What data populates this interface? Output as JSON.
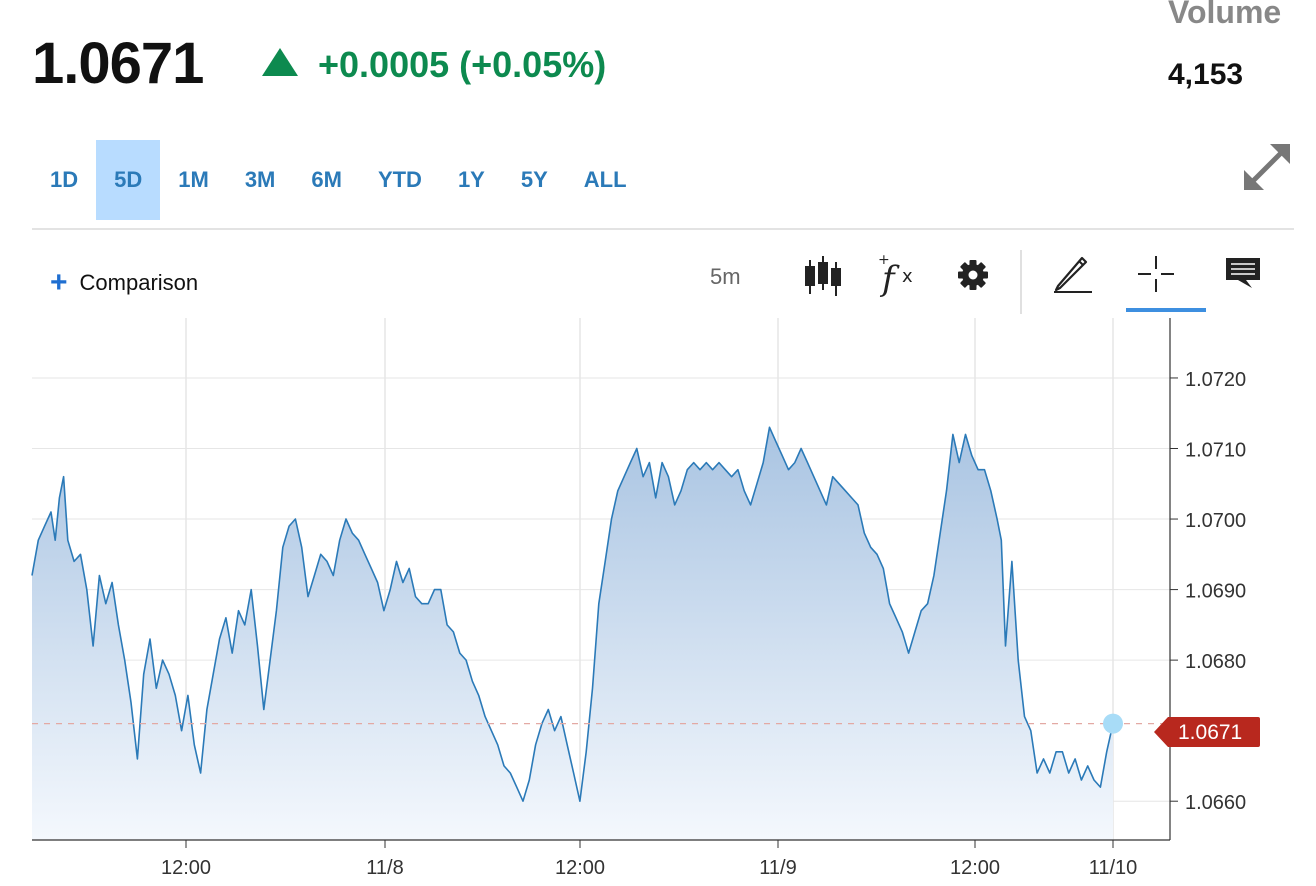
{
  "header": {
    "price": "1.0671",
    "change": "+0.0005 (+0.05%)",
    "volume_label": "Volume",
    "volume_value": "4,153",
    "up_color": "#0d8a4f"
  },
  "tabs": [
    {
      "label": "1D",
      "active": false
    },
    {
      "label": "5D",
      "active": true
    },
    {
      "label": "1M",
      "active": false
    },
    {
      "label": "3M",
      "active": false
    },
    {
      "label": "6M",
      "active": false
    },
    {
      "label": "YTD",
      "active": false
    },
    {
      "label": "1Y",
      "active": false
    },
    {
      "label": "5Y",
      "active": false
    },
    {
      "label": "ALL",
      "active": false
    }
  ],
  "toolbar": {
    "comparison_label": "Comparison",
    "interval": "5m",
    "icons": [
      "candlestick-icon",
      "fx-icon",
      "gear-icon",
      "pencil-icon",
      "crosshair-icon",
      "comment-icon"
    ]
  },
  "chart_data": {
    "type": "area",
    "line_color": "#2b7ab8",
    "x_ticks": [
      "12:00",
      "11/8",
      "12:00",
      "11/9",
      "12:00",
      "11/10"
    ],
    "y_ticks": [
      "1.0720",
      "1.0710",
      "1.0700",
      "1.0690",
      "1.0680",
      "1.0660"
    ],
    "ylim": [
      1.0656,
      1.0726
    ],
    "grid": true,
    "last_value_label": "1.0671",
    "last_value": 1.0671,
    "points": [
      [
        0,
        1.0692
      ],
      [
        3,
        1.0697
      ],
      [
        6,
        1.0699
      ],
      [
        9,
        1.0701
      ],
      [
        11,
        1.0697
      ],
      [
        13,
        1.0703
      ],
      [
        15,
        1.0706
      ],
      [
        17,
        1.0697
      ],
      [
        20,
        1.0694
      ],
      [
        23,
        1.0695
      ],
      [
        26,
        1.069
      ],
      [
        29,
        1.0682
      ],
      [
        32,
        1.0692
      ],
      [
        35,
        1.0688
      ],
      [
        38,
        1.0691
      ],
      [
        41,
        1.0685
      ],
      [
        44,
        1.068
      ],
      [
        47,
        1.0674
      ],
      [
        50,
        1.0666
      ],
      [
        53,
        1.0678
      ],
      [
        56,
        1.0683
      ],
      [
        59,
        1.0676
      ],
      [
        62,
        1.068
      ],
      [
        65,
        1.0678
      ],
      [
        68,
        1.0675
      ],
      [
        71,
        1.067
      ],
      [
        74,
        1.0675
      ],
      [
        77,
        1.0668
      ],
      [
        80,
        1.0664
      ],
      [
        83,
        1.0673
      ],
      [
        86,
        1.0678
      ],
      [
        89,
        1.0683
      ],
      [
        92,
        1.0686
      ],
      [
        95,
        1.0681
      ],
      [
        98,
        1.0687
      ],
      [
        101,
        1.0685
      ],
      [
        104,
        1.069
      ],
      [
        107,
        1.0682
      ],
      [
        110,
        1.0673
      ],
      [
        113,
        1.068
      ],
      [
        116,
        1.0687
      ],
      [
        119,
        1.0696
      ],
      [
        122,
        1.0699
      ],
      [
        125,
        1.07
      ],
      [
        128,
        1.0696
      ],
      [
        131,
        1.0689
      ],
      [
        134,
        1.0692
      ],
      [
        137,
        1.0695
      ],
      [
        140,
        1.0694
      ],
      [
        143,
        1.0692
      ],
      [
        146,
        1.0697
      ],
      [
        149,
        1.07
      ],
      [
        152,
        1.0698
      ],
      [
        155,
        1.0697
      ],
      [
        158,
        1.0695
      ],
      [
        161,
        1.0693
      ],
      [
        164,
        1.0691
      ],
      [
        167,
        1.0687
      ],
      [
        170,
        1.069
      ],
      [
        173,
        1.0694
      ],
      [
        176,
        1.0691
      ],
      [
        179,
        1.0693
      ],
      [
        182,
        1.0689
      ],
      [
        185,
        1.0688
      ],
      [
        188,
        1.0688
      ],
      [
        191,
        1.069
      ],
      [
        194,
        1.069
      ],
      [
        197,
        1.0685
      ],
      [
        200,
        1.0684
      ],
      [
        203,
        1.0681
      ],
      [
        206,
        1.068
      ],
      [
        209,
        1.0677
      ],
      [
        212,
        1.0675
      ],
      [
        215,
        1.0672
      ],
      [
        218,
        1.067
      ],
      [
        221,
        1.0668
      ],
      [
        224,
        1.0665
      ],
      [
        227,
        1.0664
      ],
      [
        230,
        1.0662
      ],
      [
        233,
        1.066
      ],
      [
        236,
        1.0663
      ],
      [
        239,
        1.0668
      ],
      [
        242,
        1.0671
      ],
      [
        245,
        1.0673
      ],
      [
        248,
        1.067
      ],
      [
        251,
        1.0672
      ],
      [
        254,
        1.0668
      ],
      [
        257,
        1.0664
      ],
      [
        260,
        1.066
      ],
      [
        263,
        1.0667
      ],
      [
        266,
        1.0676
      ],
      [
        269,
        1.0688
      ],
      [
        272,
        1.0694
      ],
      [
        275,
        1.07
      ],
      [
        278,
        1.0704
      ],
      [
        281,
        1.0706
      ],
      [
        284,
        1.0708
      ],
      [
        287,
        1.071
      ],
      [
        290,
        1.0706
      ],
      [
        293,
        1.0708
      ],
      [
        296,
        1.0703
      ],
      [
        299,
        1.0708
      ],
      [
        302,
        1.0706
      ],
      [
        305,
        1.0702
      ],
      [
        308,
        1.0704
      ],
      [
        311,
        1.0707
      ],
      [
        314,
        1.0708
      ],
      [
        317,
        1.0707
      ],
      [
        320,
        1.0708
      ],
      [
        323,
        1.0707
      ],
      [
        326,
        1.0708
      ],
      [
        329,
        1.0707
      ],
      [
        332,
        1.0706
      ],
      [
        335,
        1.0707
      ],
      [
        338,
        1.0704
      ],
      [
        341,
        1.0702
      ],
      [
        344,
        1.0705
      ],
      [
        347,
        1.0708
      ],
      [
        350,
        1.0713
      ],
      [
        353,
        1.0711
      ],
      [
        356,
        1.0709
      ],
      [
        359,
        1.0707
      ],
      [
        362,
        1.0708
      ],
      [
        365,
        1.071
      ],
      [
        368,
        1.0708
      ],
      [
        371,
        1.0706
      ],
      [
        374,
        1.0704
      ],
      [
        377,
        1.0702
      ],
      [
        380,
        1.0706
      ],
      [
        383,
        1.0705
      ],
      [
        386,
        1.0704
      ],
      [
        389,
        1.0703
      ],
      [
        392,
        1.0702
      ],
      [
        395,
        1.0698
      ],
      [
        398,
        1.0696
      ],
      [
        401,
        1.0695
      ],
      [
        404,
        1.0693
      ],
      [
        407,
        1.0688
      ],
      [
        410,
        1.0686
      ],
      [
        413,
        1.0684
      ],
      [
        416,
        1.0681
      ],
      [
        419,
        1.0684
      ],
      [
        422,
        1.0687
      ],
      [
        425,
        1.0688
      ],
      [
        428,
        1.0692
      ],
      [
        431,
        1.0698
      ],
      [
        434,
        1.0704
      ],
      [
        437,
        1.0712
      ],
      [
        440,
        1.0708
      ],
      [
        443,
        1.0712
      ],
      [
        446,
        1.0709
      ],
      [
        449,
        1.0707
      ],
      [
        452,
        1.0707
      ],
      [
        455,
        1.0704
      ],
      [
        458,
        1.07
      ],
      [
        460,
        1.0697
      ],
      [
        462,
        1.0682
      ],
      [
        465,
        1.0694
      ],
      [
        468,
        1.068
      ],
      [
        471,
        1.0672
      ],
      [
        474,
        1.067
      ],
      [
        477,
        1.0664
      ],
      [
        480,
        1.0666
      ],
      [
        483,
        1.0664
      ],
      [
        486,
        1.0667
      ],
      [
        489,
        1.0667
      ],
      [
        492,
        1.0664
      ],
      [
        495,
        1.0666
      ],
      [
        498,
        1.0663
      ],
      [
        501,
        1.0665
      ],
      [
        504,
        1.0663
      ],
      [
        507,
        1.0662
      ],
      [
        510,
        1.0667
      ],
      [
        513,
        1.0671
      ]
    ]
  }
}
